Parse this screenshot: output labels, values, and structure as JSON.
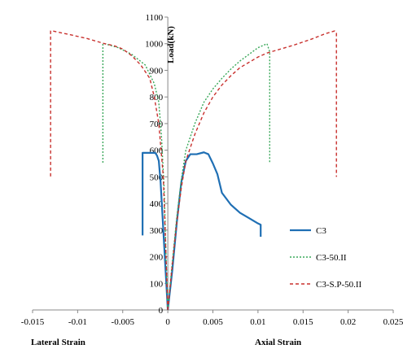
{
  "chart_data": {
    "type": "line",
    "title": "",
    "xlabel_left": "Lateral Strain",
    "xlabel_right": "Axial Strain",
    "ylabel": "Load(kN)",
    "xlim": [
      -0.015,
      0.025
    ],
    "ylim": [
      0,
      1100
    ],
    "x_ticks": [
      -0.015,
      -0.01,
      -0.005,
      0,
      0.005,
      0.01,
      0.015,
      0.02,
      0.025
    ],
    "x_tick_labels": [
      "-0.015",
      "-0.01",
      "-0.005",
      "0",
      "0.005",
      "0.01",
      "0.015",
      "0.02",
      "0.025"
    ],
    "y_ticks": [
      0,
      100,
      200,
      300,
      400,
      500,
      600,
      700,
      800,
      900,
      1000,
      1100
    ],
    "y_tick_labels": [
      "0",
      "100",
      "200",
      "300",
      "400",
      "500",
      "600",
      "700",
      "800",
      "900",
      "1000",
      "1100"
    ],
    "grid": false,
    "legend_position": "right",
    "series": [
      {
        "name": "C3",
        "color": "#1f6fb4",
        "dash": "solid",
        "segments": [
          [
            [
              0,
              0
            ],
            [
              -0.0002,
              120
            ],
            [
              -0.0005,
              300
            ],
            [
              -0.0008,
              480
            ],
            [
              -0.001,
              560
            ],
            [
              -0.0012,
              580
            ],
            [
              -0.0014,
              590
            ],
            [
              -0.0025,
              590
            ],
            [
              -0.0028,
              590
            ],
            [
              -0.0028,
              280
            ]
          ],
          [
            [
              0,
              0
            ],
            [
              0.0005,
              150
            ],
            [
              0.001,
              330
            ],
            [
              0.0015,
              480
            ],
            [
              0.002,
              560
            ],
            [
              0.0025,
              585
            ],
            [
              0.0032,
              585
            ],
            [
              0.004,
              592
            ],
            [
              0.0045,
              585
            ],
            [
              0.005,
              550
            ],
            [
              0.0055,
              510
            ],
            [
              0.006,
              440
            ],
            [
              0.007,
              395
            ],
            [
              0.008,
              365
            ],
            [
              0.009,
              345
            ],
            [
              0.01,
              325
            ],
            [
              0.0103,
              320
            ],
            [
              0.0103,
              275
            ]
          ]
        ]
      },
      {
        "name": "C3-50.II",
        "color": "#3aa85a",
        "dash": "2,2",
        "segments": [
          [
            [
              0,
              0
            ],
            [
              -0.0002,
              200
            ],
            [
              -0.0004,
              450
            ],
            [
              -0.0007,
              650
            ],
            [
              -0.001,
              780
            ],
            [
              -0.0015,
              850
            ],
            [
              -0.0025,
              920
            ],
            [
              -0.004,
              960
            ],
            [
              -0.0055,
              985
            ],
            [
              -0.007,
              1000
            ],
            [
              -0.0072,
              1000
            ],
            [
              -0.0072,
              550
            ]
          ],
          [
            [
              0,
              0
            ],
            [
              0.0005,
              180
            ],
            [
              0.001,
              350
            ],
            [
              0.0015,
              490
            ],
            [
              0.002,
              600
            ],
            [
              0.003,
              700
            ],
            [
              0.004,
              780
            ],
            [
              0.005,
              830
            ],
            [
              0.006,
              870
            ],
            [
              0.007,
              905
            ],
            [
              0.008,
              935
            ],
            [
              0.009,
              960
            ],
            [
              0.01,
              985
            ],
            [
              0.011,
              1000
            ],
            [
              0.0113,
              970
            ],
            [
              0.0113,
              550
            ]
          ]
        ]
      },
      {
        "name": "C3-S.P-50.II",
        "color": "#c8302d",
        "dash": "4,3",
        "segments": [
          [
            [
              0,
              0
            ],
            [
              -0.0002,
              200
            ],
            [
              -0.0005,
              500
            ],
            [
              -0.001,
              700
            ],
            [
              -0.0015,
              800
            ],
            [
              -0.002,
              870
            ],
            [
              -0.003,
              920
            ],
            [
              -0.004,
              955
            ],
            [
              -0.005,
              980
            ],
            [
              -0.006,
              993
            ],
            [
              -0.007,
              1000
            ],
            [
              -0.009,
              1020
            ],
            [
              -0.011,
              1035
            ],
            [
              -0.0128,
              1048
            ],
            [
              -0.013,
              1048
            ],
            [
              -0.013,
              500
            ]
          ],
          [
            [
              0,
              0
            ],
            [
              0.0005,
              170
            ],
            [
              0.001,
              330
            ],
            [
              0.0015,
              460
            ],
            [
              0.002,
              560
            ],
            [
              0.003,
              660
            ],
            [
              0.004,
              740
            ],
            [
              0.005,
              800
            ],
            [
              0.006,
              845
            ],
            [
              0.007,
              880
            ],
            [
              0.008,
              910
            ],
            [
              0.009,
              930
            ],
            [
              0.01,
              950
            ],
            [
              0.011,
              965
            ],
            [
              0.012,
              975
            ],
            [
              0.014,
              995
            ],
            [
              0.016,
              1018
            ],
            [
              0.0175,
              1038
            ],
            [
              0.0185,
              1048
            ],
            [
              0.0187,
              1040
            ],
            [
              0.0187,
              500
            ]
          ]
        ]
      }
    ]
  }
}
